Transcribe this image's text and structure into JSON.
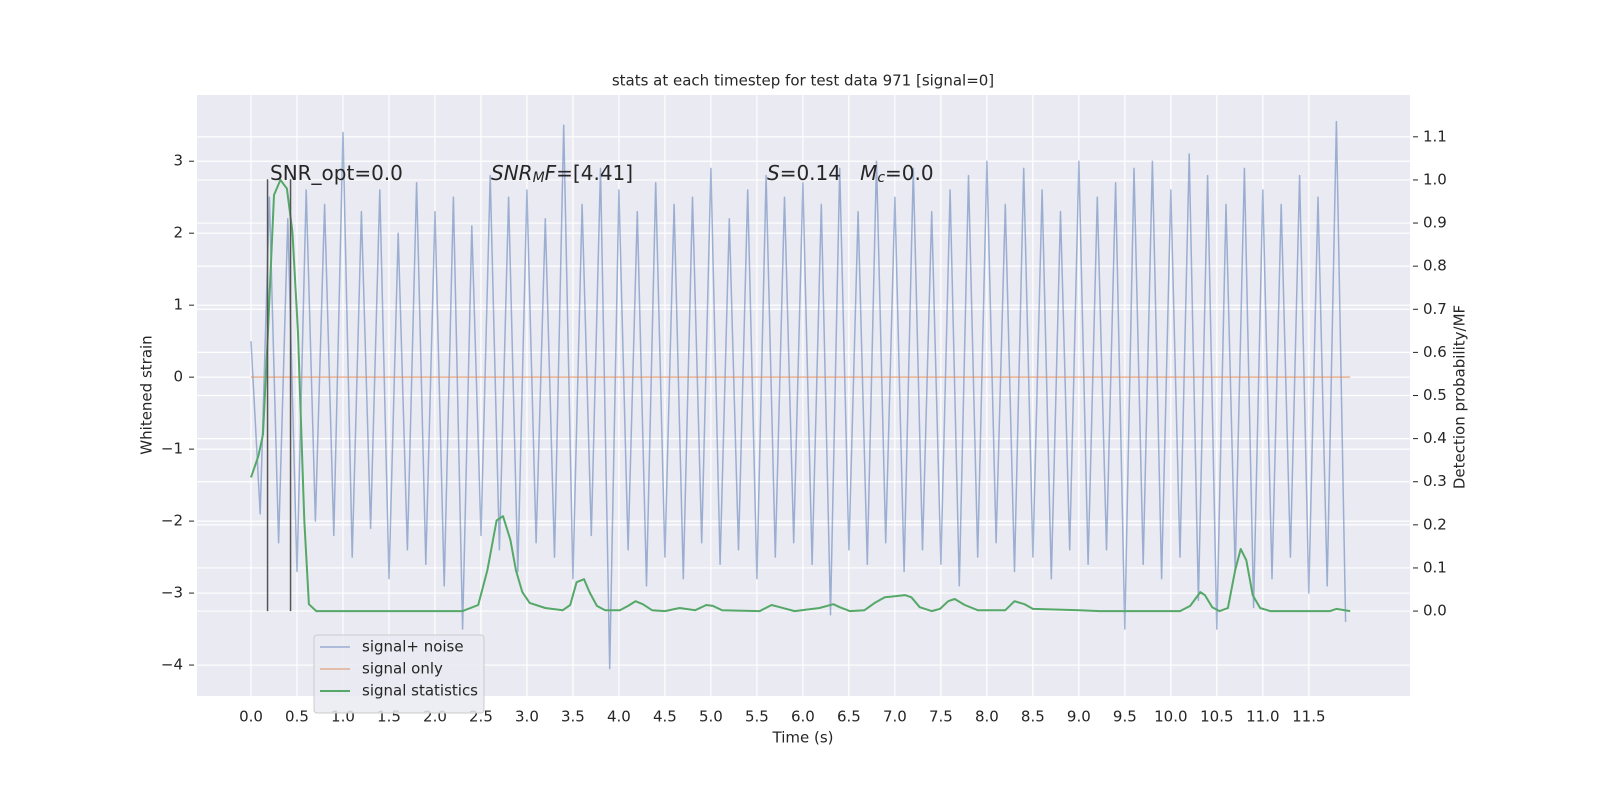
{
  "chart_data": {
    "type": "line",
    "title": "stats at each timestep for test data 971 [signal=0]",
    "xlabel": "Time (s)",
    "ylabel": "Whitened strain",
    "y2label": "Detection probability/MF",
    "xlim": [
      -0.587,
      12.6
    ],
    "ylim": [
      -4.43,
      3.92
    ],
    "y2lim": [
      -0.197,
      1.197
    ],
    "xticks": [
      {
        "value": 0,
        "label": "0.0"
      },
      {
        "value": 0.5,
        "label": "0.5"
      },
      {
        "value": 1,
        "label": "1.0"
      },
      {
        "value": 1.5,
        "label": "1.5"
      },
      {
        "value": 2,
        "label": "2.0"
      },
      {
        "value": 2.5,
        "label": "2.5"
      },
      {
        "value": 3,
        "label": "3.0"
      },
      {
        "value": 3.5,
        "label": "3.5"
      },
      {
        "value": 4,
        "label": "4.0"
      },
      {
        "value": 4.5,
        "label": "4.5"
      },
      {
        "value": 5,
        "label": "5.0"
      },
      {
        "value": 5.5,
        "label": "5.5"
      },
      {
        "value": 6,
        "label": "6.0"
      },
      {
        "value": 6.5,
        "label": "6.5"
      },
      {
        "value": 7,
        "label": "7.0"
      },
      {
        "value": 7.5,
        "label": "7.5"
      },
      {
        "value": 8,
        "label": "8.0"
      },
      {
        "value": 8.5,
        "label": "8.5"
      },
      {
        "value": 9,
        "label": "9.0"
      },
      {
        "value": 9.5,
        "label": "9.5"
      },
      {
        "value": 10,
        "label": "10.0"
      },
      {
        "value": 10.5,
        "label": "10.5"
      },
      {
        "value": 11,
        "label": "11.0"
      },
      {
        "value": 11.5,
        "label": "11.5"
      }
    ],
    "yticks": [
      {
        "value": -4,
        "label": "−4"
      },
      {
        "value": -3,
        "label": "−3"
      },
      {
        "value": -2,
        "label": "−2"
      },
      {
        "value": -1,
        "label": "−1"
      },
      0,
      1,
      2,
      3
    ],
    "y2ticks": [
      {
        "value": 0,
        "label": "0.0"
      },
      {
        "value": 0.1,
        "label": "0.1"
      },
      {
        "value": 0.2,
        "label": "0.2"
      },
      {
        "value": 0.3,
        "label": "0.3"
      },
      {
        "value": 0.4,
        "label": "0.4"
      },
      {
        "value": 0.5,
        "label": "0.5"
      },
      {
        "value": 0.6,
        "label": "0.6"
      },
      {
        "value": 0.7,
        "label": "0.7"
      },
      {
        "value": 0.8,
        "label": "0.8"
      },
      {
        "value": 0.9,
        "label": "0.9"
      },
      {
        "value": 1,
        "label": "1.0"
      },
      {
        "value": 1.1,
        "label": "1.1"
      }
    ],
    "grid": true,
    "legend": "lower left",
    "series": [
      {
        "name": "signal+ noise",
        "color": "#4c72b0",
        "x": [
          0,
          0.1,
          0.2,
          0.3,
          0.4,
          0.5,
          0.6,
          0.7,
          0.8,
          0.9,
          1,
          1.1,
          1.2,
          1.3,
          1.4,
          1.5,
          1.6,
          1.7,
          1.8,
          1.9,
          2,
          2.1,
          2.2,
          2.3,
          2.4,
          2.5,
          2.6,
          2.7,
          2.8,
          2.9,
          3,
          3.1,
          3.2,
          3.3,
          3.4,
          3.5,
          3.6,
          3.7,
          3.8,
          3.9,
          4,
          4.1,
          4.2,
          4.3,
          4.4,
          4.5,
          4.6,
          4.7,
          4.8,
          4.9,
          5,
          5.1,
          5.2,
          5.3,
          5.4,
          5.5,
          5.6,
          5.7,
          5.8,
          5.9,
          6,
          6.1,
          6.2,
          6.3,
          6.4,
          6.5,
          6.6,
          6.7,
          6.8,
          6.9,
          7,
          7.1,
          7.2,
          7.3,
          7.4,
          7.5,
          7.6,
          7.7,
          7.8,
          7.9,
          8,
          8.1,
          8.2,
          8.3,
          8.4,
          8.5,
          8.6,
          8.7,
          8.8,
          8.9,
          9,
          9.1,
          9.2,
          9.3,
          9.4,
          9.5,
          9.6,
          9.7,
          9.8,
          9.9,
          10,
          10.1,
          10.2,
          10.3,
          10.4,
          10.5,
          10.6,
          10.7,
          10.8,
          10.9,
          11,
          11.1,
          11.2,
          11.3,
          11.4,
          11.5,
          11.6,
          11.7,
          11.8,
          11.9
        ],
        "values": [
          0.5,
          -1.9,
          2.5,
          -2.3,
          2.2,
          -2.7,
          2.6,
          -2.0,
          2.4,
          -2.2,
          3.4,
          -2.5,
          2.3,
          -2.1,
          2.6,
          -2.8,
          2.0,
          -2.4,
          2.7,
          -2.6,
          2.3,
          -2.9,
          2.5,
          -3.5,
          2.1,
          -2.2,
          2.8,
          -2.4,
          2.5,
          -2.7,
          2.6,
          -2.3,
          2.2,
          -2.5,
          3.5,
          -2.8,
          2.4,
          -2.2,
          2.9,
          -4.05,
          2.6,
          -2.4,
          2.3,
          -2.9,
          2.7,
          -2.5,
          2.4,
          -2.8,
          2.5,
          -2.3,
          2.9,
          -2.6,
          2.2,
          -2.4,
          2.6,
          -2.8,
          2.8,
          -2.5,
          2.5,
          -2.3,
          2.7,
          -2.6,
          2.4,
          -3.3,
          2.9,
          -2.4,
          2.3,
          -2.6,
          3.0,
          -2.3,
          2.5,
          -2.7,
          2.9,
          -2.4,
          2.3,
          -2.6,
          2.6,
          -2.9,
          2.8,
          -2.5,
          3.0,
          -2.3,
          2.4,
          -2.7,
          2.9,
          -2.5,
          2.6,
          -2.8,
          2.3,
          -2.4,
          3.0,
          -2.6,
          2.5,
          -2.4,
          2.7,
          -3.5,
          2.9,
          -2.6,
          3.0,
          -2.8,
          2.6,
          -2.5,
          3.1,
          -3.1,
          2.8,
          -3.5,
          2.4,
          -2.7,
          2.9,
          -3.2,
          2.6,
          -2.8,
          2.4,
          -2.5,
          2.8,
          -3.0,
          2.5,
          -2.9,
          3.55,
          -3.4
        ]
      },
      {
        "name": "signal only",
        "color": "#dd8452",
        "x": [
          0,
          11.95
        ],
        "values": [
          0,
          0
        ]
      },
      {
        "name": "signal statistics",
        "color": "#55a868",
        "axis": "y2",
        "x": [
          0,
          0.08,
          0.13,
          0.18,
          0.25,
          0.32,
          0.39,
          0.45,
          0.51,
          0.58,
          0.63,
          0.71,
          2.3,
          2.47,
          2.57,
          2.67,
          2.74,
          2.82,
          2.88,
          2.95,
          3.03,
          3.2,
          3.39,
          3.47,
          3.54,
          3.62,
          3.68,
          3.76,
          3.85,
          4.01,
          4.1,
          4.18,
          4.26,
          4.36,
          4.5,
          4.66,
          4.83,
          4.95,
          5.02,
          5.12,
          5.53,
          5.66,
          5.75,
          5.91,
          6.18,
          6.33,
          6.4,
          6.51,
          6.67,
          6.78,
          6.89,
          7.11,
          7.18,
          7.27,
          7.4,
          7.49,
          7.58,
          7.65,
          7.76,
          7.9,
          8.2,
          8.3,
          8.41,
          8.5,
          9.01,
          9.23,
          10.1,
          10.21,
          10.32,
          10.37,
          10.45,
          10.53,
          10.62,
          10.7,
          10.76,
          10.82,
          10.89,
          10.97,
          11.08,
          11.73,
          11.8,
          11.95
        ],
        "values": [
          0.31,
          0.36,
          0.41,
          0.63,
          0.965,
          1.0,
          0.98,
          0.88,
          0.65,
          0.21,
          0.016,
          0,
          0,
          0.014,
          0.095,
          0.21,
          0.22,
          0.165,
          0.095,
          0.044,
          0.019,
          0.007,
          0.002,
          0.014,
          0.067,
          0.074,
          0.044,
          0.012,
          0.002,
          0.002,
          0.012,
          0.023,
          0.016,
          0.002,
          0,
          0.007,
          0.002,
          0.014,
          0.012,
          0.002,
          0,
          0.014,
          0.009,
          0,
          0.007,
          0.016,
          0.009,
          0,
          0.002,
          0.019,
          0.032,
          0.037,
          0.032,
          0.009,
          0,
          0.005,
          0.023,
          0.028,
          0.014,
          0.002,
          0.002,
          0.023,
          0.016,
          0.005,
          0.002,
          0,
          0,
          0.012,
          0.044,
          0.037,
          0.009,
          0,
          0.007,
          0.095,
          0.144,
          0.118,
          0.037,
          0.007,
          0,
          0,
          0.005,
          0
        ]
      }
    ],
    "vlines": {
      "x": [
        0.18,
        0.43
      ],
      "y": [
        -3.25,
        2.75
      ]
    },
    "annotations": [
      [
        {
          "text": "SNR_opt=0.0"
        }
      ],
      [
        {
          "text": "SNR",
          "style": "italic"
        },
        {
          "text": "M",
          "style": "sub"
        },
        {
          "text": "F",
          "style": "italic"
        },
        {
          "text": "=[4.41]"
        }
      ],
      [
        {
          "text": "S",
          "style": "italic"
        },
        {
          "text": "=0.14   "
        },
        {
          "text": "M",
          "style": "italic"
        },
        {
          "text": "c",
          "style": "sub"
        },
        {
          "text": "=0.0"
        }
      ]
    ]
  }
}
